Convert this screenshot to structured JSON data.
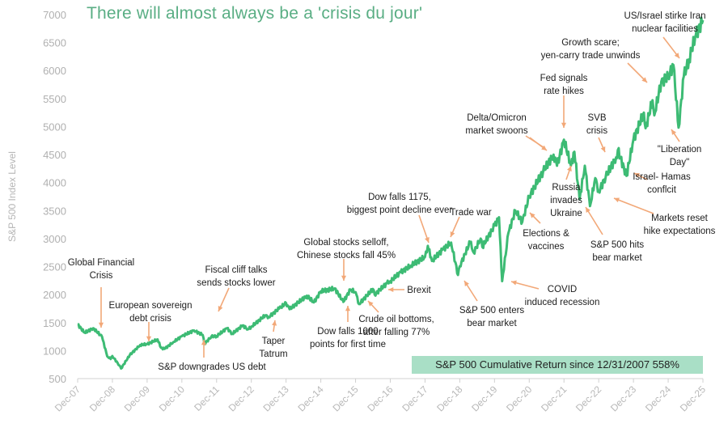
{
  "chart_data": {
    "type": "line",
    "title": "There will almost always be a 'crisis du jour'",
    "ylabel": "S&P 500 Index Level",
    "xlabel": "",
    "ylim": [
      500,
      7000
    ],
    "yticks": [
      500,
      1000,
      1500,
      2000,
      2500,
      3000,
      3500,
      4000,
      4500,
      5000,
      5500,
      6000,
      6500,
      7000
    ],
    "xtick_labels": [
      "Dec-07",
      "Dec-08",
      "Dec-09",
      "Dec-10",
      "Dec-11",
      "Dec-12",
      "Dec-13",
      "Dec-14",
      "Dec-15",
      "Dec-16",
      "Dec-17",
      "Dec-18",
      "Dec-19",
      "Dec-20",
      "Dec-21",
      "Dec-22",
      "Dec-23",
      "Dec-24",
      "Dec-25"
    ],
    "grid": false,
    "series": [
      {
        "name": "S&P 500",
        "color": "#3dbb74",
        "x_years_since_dec07": [
          0,
          0.2,
          0.45,
          0.7,
          0.85,
          0.95,
          1.0,
          1.2,
          1.25,
          1.5,
          1.8,
          2.0,
          2.3,
          2.4,
          2.5,
          2.75,
          3.0,
          3.35,
          3.6,
          3.65,
          3.85,
          4.0,
          4.3,
          4.45,
          4.75,
          4.9,
          5.0,
          5.4,
          5.5,
          5.8,
          6.0,
          6.1,
          6.6,
          6.8,
          7.0,
          7.4,
          7.65,
          7.85,
          8.0,
          8.1,
          8.5,
          8.55,
          8.9,
          9.0,
          9.3,
          9.6,
          10.0,
          10.08,
          10.2,
          10.5,
          10.75,
          10.95,
          11.0,
          11.3,
          11.4,
          11.6,
          11.65,
          12.0,
          12.13,
          12.22,
          12.4,
          12.6,
          12.8,
          13.0,
          13.4,
          13.7,
          13.8,
          14.0,
          14.2,
          14.3,
          14.45,
          14.6,
          14.75,
          14.9,
          15.0,
          15.2,
          15.5,
          15.55,
          15.8,
          16.0,
          16.3,
          16.35,
          16.55,
          16.6,
          16.8,
          17.0,
          17.15,
          17.3,
          17.45,
          17.6,
          17.8,
          18.0
        ],
        "values": [
          1468,
          1320,
          1400,
          1250,
          900,
          850,
          903,
          735,
          680,
          920,
          1100,
          1115,
          1200,
          1050,
          1030,
          1150,
          1257,
          1360,
          1280,
          1120,
          1250,
          1258,
          1400,
          1300,
          1450,
          1380,
          1426,
          1630,
          1600,
          1750,
          1848,
          1740,
          1980,
          1860,
          2059,
          2110,
          1870,
          2090,
          2044,
          1830,
          2100,
          2000,
          2200,
          2239,
          2400,
          2520,
          2673,
          2870,
          2600,
          2800,
          2930,
          2350,
          2507,
          2940,
          2750,
          3000,
          2850,
          3231,
          3380,
          2240,
          3100,
          3500,
          3300,
          3756,
          4200,
          4500,
          4300,
          4766,
          4300,
          4550,
          3700,
          4300,
          3580,
          4080,
          3839,
          4100,
          4450,
          4580,
          4120,
          4770,
          5250,
          4970,
          5470,
          5200,
          5800,
          5880,
          6100,
          4980,
          5900,
          6200,
          6650,
          6900
        ]
      }
    ],
    "annotations": [
      {
        "id": "gfc",
        "lines": [
          "Global Financial",
          "Crisis"
        ]
      },
      {
        "id": "euro",
        "lines": [
          "European sovereign",
          "debt crisis"
        ]
      },
      {
        "id": "downgrade",
        "lines": [
          "S&P downgrades US debt"
        ]
      },
      {
        "id": "fiscal",
        "lines": [
          "Fiscal cliff talks",
          "sends stocks lower"
        ]
      },
      {
        "id": "taper",
        "lines": [
          "Taper",
          "Tatrum"
        ]
      },
      {
        "id": "china",
        "lines": [
          "Global stocks selloff,",
          "Chinese stocks fall 45%"
        ]
      },
      {
        "id": "dow1000",
        "lines": [
          "Dow falls 1000",
          "points for first time"
        ]
      },
      {
        "id": "crude",
        "lines": [
          "Crude oil bottoms,",
          "after falling 77%"
        ]
      },
      {
        "id": "brexit",
        "lines": [
          "Brexit"
        ]
      },
      {
        "id": "dow1175",
        "lines": [
          "Dow falls 1175,",
          "biggest point decline ever"
        ]
      },
      {
        "id": "tradewar",
        "lines": [
          "Trade war"
        ]
      },
      {
        "id": "bear2018",
        "lines": [
          "S&P 500 enters",
          "bear market"
        ]
      },
      {
        "id": "covid",
        "lines": [
          "COVID",
          "induced recession"
        ]
      },
      {
        "id": "elections",
        "lines": [
          "Elections &",
          "vaccines"
        ]
      },
      {
        "id": "russia",
        "lines": [
          "Russia",
          "invades",
          "Ukraine"
        ]
      },
      {
        "id": "delta",
        "lines": [
          "Delta/Omicron",
          "market swoons"
        ]
      },
      {
        "id": "fed",
        "lines": [
          "Fed signals",
          "rate hikes"
        ]
      },
      {
        "id": "svb",
        "lines": [
          "SVB",
          "crisis"
        ]
      },
      {
        "id": "bear2022",
        "lines": [
          "S&P 500 hits",
          "bear market"
        ]
      },
      {
        "id": "israel",
        "lines": [
          "Israel- Hamas",
          "conflcit"
        ]
      },
      {
        "id": "reset",
        "lines": [
          "Markets reset",
          "hike expectations"
        ]
      },
      {
        "id": "growth",
        "lines": [
          "Growth scare;",
          "yen-carry trade unwinds"
        ]
      },
      {
        "id": "iran",
        "lines": [
          "US/Israel stirke Iran",
          "nuclear facilities"
        ]
      },
      {
        "id": "liberation",
        "lines": [
          "\"Liberation",
          "Day\""
        ]
      }
    ],
    "callout": "S&P 500 Cumulative Return since 12/31/2007 558%",
    "arrow_color": "#f2a878"
  }
}
